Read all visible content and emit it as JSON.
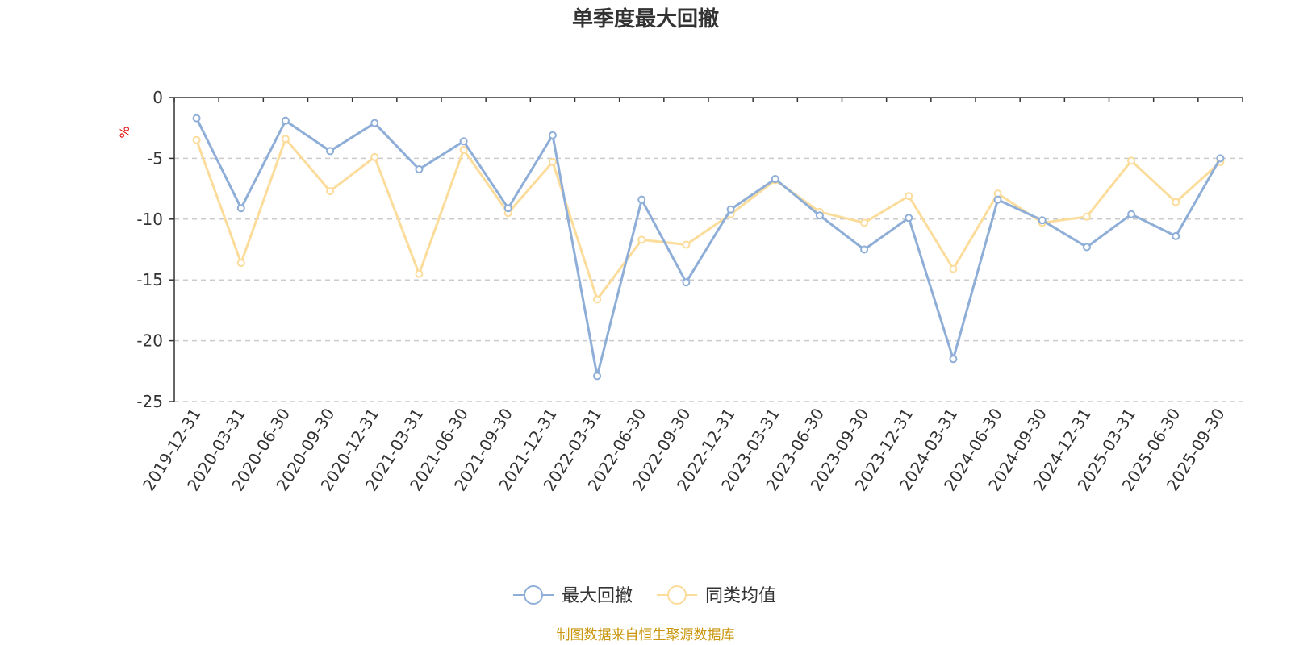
{
  "chart_data": {
    "type": "line",
    "title": "单季度最大回撤",
    "ylabel": "%",
    "ylim": [
      -25,
      0
    ],
    "yticks": [
      0,
      -5,
      -10,
      -15,
      -20,
      -25
    ],
    "grid": true,
    "legend_position": "bottom",
    "x": [
      "2019-12-31",
      "2020-03-31",
      "2020-06-30",
      "2020-09-30",
      "2020-12-31",
      "2021-03-31",
      "2021-06-30",
      "2021-09-30",
      "2021-12-31",
      "2022-03-31",
      "2022-06-30",
      "2022-09-30",
      "2022-12-31",
      "2023-03-31",
      "2023-06-30",
      "2023-09-30",
      "2023-12-31",
      "2024-03-31",
      "2024-06-30",
      "2024-09-30",
      "2024-12-31",
      "2025-03-31",
      "2025-06-30",
      "2025-09-30"
    ],
    "series": [
      {
        "name": "最大回撤",
        "color": "#8eaed8",
        "values": [
          -1.7,
          -9.1,
          -1.9,
          -4.4,
          -2.1,
          -5.9,
          -3.6,
          -9.1,
          -3.1,
          -22.9,
          -8.4,
          -15.2,
          -9.2,
          -6.7,
          -9.7,
          -12.5,
          -9.9,
          -21.5,
          -8.4,
          -10.1,
          -12.3,
          -9.6,
          -11.4,
          -5.0
        ]
      },
      {
        "name": "同类均值",
        "color": "#fcdc9b",
        "values": [
          -3.5,
          -13.6,
          -3.4,
          -7.7,
          -4.9,
          -14.5,
          -4.3,
          -9.5,
          -5.3,
          -16.6,
          -11.7,
          -12.1,
          -9.6,
          -6.8,
          -9.4,
          -10.3,
          -8.1,
          -14.1,
          -7.9,
          -10.3,
          -9.8,
          -5.2,
          -8.6,
          -5.3
        ]
      }
    ]
  },
  "source_note": "制图数据来自恒生聚源数据库"
}
